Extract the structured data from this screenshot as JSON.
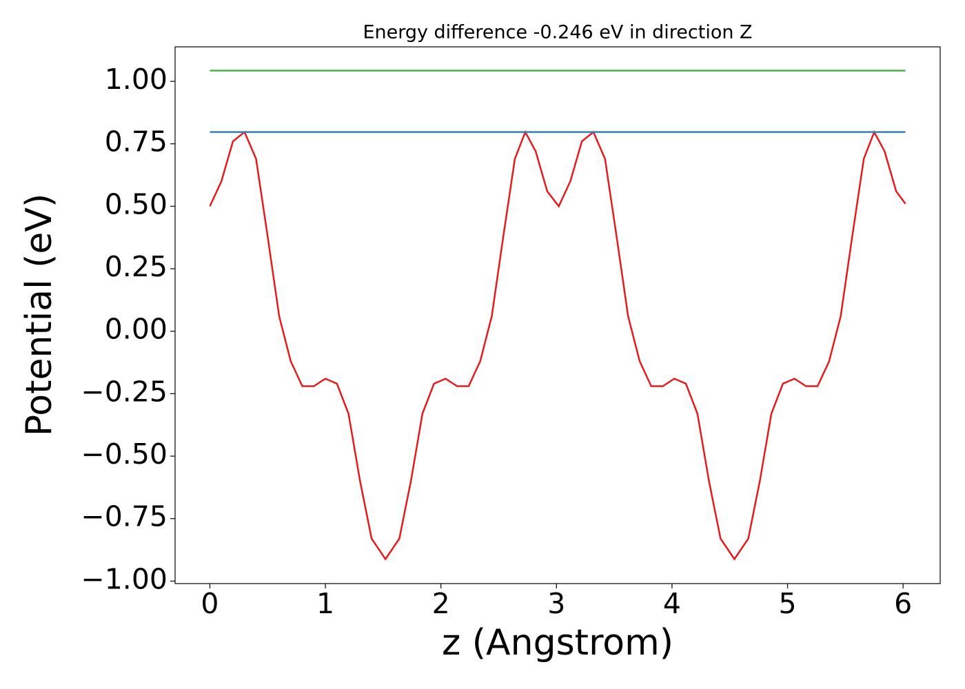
{
  "chart_data": {
    "type": "line",
    "title": "Energy difference -0.246 eV in direction Z",
    "xlabel": "z (Angstrom)",
    "ylabel": "Potential (eV)",
    "xlim": [
      -0.301,
      6.321
    ],
    "ylim": [
      -1.01,
      1.138
    ],
    "xticks": [
      0,
      1,
      2,
      3,
      4,
      5,
      6
    ],
    "yticks": [
      {
        "value": -1.0,
        "label": "−1.00"
      },
      {
        "value": -0.75,
        "label": "−0.75"
      },
      {
        "value": -0.5,
        "label": "−0.50"
      },
      {
        "value": -0.25,
        "label": "−0.25"
      },
      {
        "value": 0,
        "label": "0.00"
      },
      {
        "value": 0.25,
        "label": "0.25"
      },
      {
        "value": 0.5,
        "label": "0.50"
      },
      {
        "value": 0.75,
        "label": "0.75"
      },
      {
        "value": 1.0,
        "label": "1.00"
      }
    ],
    "series": [
      {
        "color": "#e41a1c",
        "x": [
          0,
          0.1,
          0.2,
          0.3,
          0.4,
          0.5,
          0.6,
          0.7,
          0.8,
          0.9,
          1.0,
          1.1,
          1.2,
          1.3,
          1.4,
          1.52,
          1.64,
          1.74,
          1.84,
          1.94,
          2.04,
          2.14,
          2.24,
          2.34,
          2.44,
          2.54,
          2.64,
          2.73,
          2.82,
          2.92,
          3.02,
          3.12,
          3.22,
          3.32,
          3.42,
          3.52,
          3.62,
          3.72,
          3.82,
          3.92,
          4.02,
          4.12,
          4.22,
          4.32,
          4.42,
          4.54,
          4.66,
          4.76,
          4.86,
          4.96,
          5.06,
          5.16,
          5.26,
          5.36,
          5.46,
          5.56,
          5.66,
          5.75,
          5.84,
          5.94,
          6.02
        ],
        "values": [
          0.5,
          0.6,
          0.76,
          0.797,
          0.69,
          0.38,
          0.06,
          -0.12,
          -0.22,
          -0.22,
          -0.19,
          -0.21,
          -0.33,
          -0.6,
          -0.83,
          -0.912,
          -0.83,
          -0.6,
          -0.33,
          -0.21,
          -0.19,
          -0.22,
          -0.22,
          -0.12,
          0.06,
          0.38,
          0.69,
          0.797,
          0.72,
          0.56,
          0.5,
          0.6,
          0.76,
          0.797,
          0.69,
          0.38,
          0.06,
          -0.12,
          -0.22,
          -0.22,
          -0.19,
          -0.21,
          -0.33,
          -0.6,
          -0.83,
          -0.912,
          -0.83,
          -0.6,
          -0.33,
          -0.21,
          -0.19,
          -0.22,
          -0.22,
          -0.12,
          0.06,
          0.38,
          0.69,
          0.797,
          0.72,
          0.56,
          0.51
        ]
      },
      {
        "color": "#377eb8",
        "x": [
          0,
          6.02
        ],
        "values": [
          0.797,
          0.797
        ]
      },
      {
        "color": "#4daf4a",
        "x": [
          0,
          6.02
        ],
        "values": [
          1.043,
          1.043
        ]
      }
    ]
  }
}
